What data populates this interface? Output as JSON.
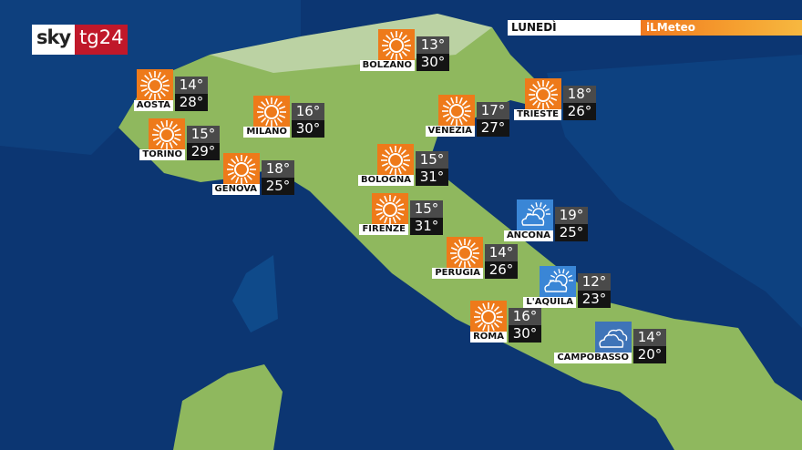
{
  "branding": {
    "logo_sky": "sky",
    "logo_tg": "tg24",
    "meteo": "iLMeteo"
  },
  "day": "LUNEDÌ",
  "colors": {
    "sea": "#0c3672",
    "land": "#8fb85e",
    "sun_tile": "#ee7a1a",
    "cloud_tile": "#3a86d6",
    "accent": "#c0182a"
  },
  "cities": [
    {
      "name": "AOSTA",
      "icon": "sun-icon",
      "min": "14°",
      "max": "28°"
    },
    {
      "name": "BOLZANO",
      "icon": "sun-icon",
      "min": "13°",
      "max": "30°"
    },
    {
      "name": "MILANO",
      "icon": "sun-icon",
      "min": "16°",
      "max": "30°"
    },
    {
      "name": "TRIESTE",
      "icon": "sun-icon",
      "min": "18°",
      "max": "26°"
    },
    {
      "name": "TORINO",
      "icon": "sun-icon",
      "min": "15°",
      "max": "29°"
    },
    {
      "name": "VENEZIA",
      "icon": "sun-icon",
      "min": "17°",
      "max": "27°"
    },
    {
      "name": "GENOVA",
      "icon": "sun-icon",
      "min": "18°",
      "max": "25°"
    },
    {
      "name": "BOLOGNA",
      "icon": "sun-icon",
      "min": "15°",
      "max": "31°"
    },
    {
      "name": "FIRENZE",
      "icon": "sun-icon",
      "min": "15°",
      "max": "31°"
    },
    {
      "name": "ANCONA",
      "icon": "partly-cloudy-icon",
      "min": "19°",
      "max": "25°"
    },
    {
      "name": "PERUGIA",
      "icon": "sun-icon",
      "min": "14°",
      "max": "26°"
    },
    {
      "name": "L'AQUILA",
      "icon": "partly-cloudy-icon",
      "min": "12°",
      "max": "23°"
    },
    {
      "name": "ROMA",
      "icon": "sun-icon",
      "min": "16°",
      "max": "30°"
    },
    {
      "name": "CAMPOBASSO",
      "icon": "cloudy-icon",
      "min": "14°",
      "max": "20°"
    }
  ]
}
